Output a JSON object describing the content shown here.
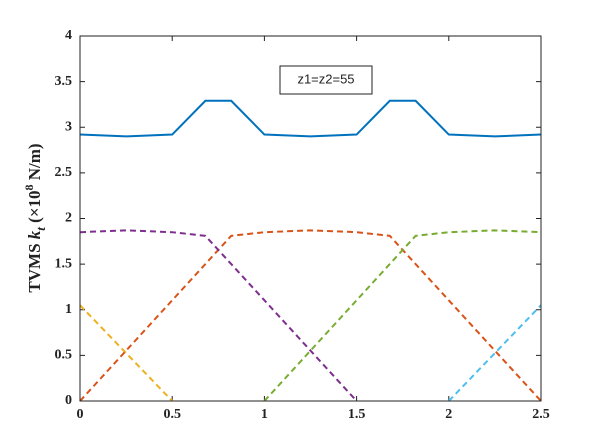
{
  "chart_data": {
    "type": "line",
    "annotation": "z1=z2=55",
    "ylabel_parts": [
      "TVMS ",
      "k",
      "t",
      " (×10",
      "8",
      " N/m)"
    ],
    "xlim": [
      0,
      2.5
    ],
    "xticks": [
      0,
      0.5,
      1,
      1.5,
      2,
      2.5
    ],
    "ylim": [
      0,
      4
    ],
    "yticks": [
      0,
      0.5,
      1,
      1.5,
      2,
      2.5,
      3,
      3.5,
      4
    ],
    "series": [
      {
        "color": "#0072bd",
        "style": "solid",
        "x": [
          0,
          0.25,
          0.5,
          0.68,
          0.82,
          1.0,
          1.25,
          1.5,
          1.68,
          1.82,
          2.0,
          2.25,
          2.5
        ],
        "values": [
          2.92,
          2.9,
          2.92,
          3.29,
          3.29,
          2.92,
          2.9,
          2.92,
          3.29,
          3.29,
          2.92,
          2.9,
          2.92
        ]
      },
      {
        "color": "#edb120",
        "style": "dashed",
        "x": [
          0,
          0.5
        ],
        "values": [
          1.05,
          0
        ]
      },
      {
        "color": "#d95319",
        "style": "dashed",
        "x": [
          0,
          0.82,
          1.0,
          1.25,
          1.5,
          1.68,
          2.5
        ],
        "values": [
          0,
          1.81,
          1.85,
          1.87,
          1.85,
          1.81,
          0
        ]
      },
      {
        "color": "#7e2f8e",
        "style": "dashed",
        "x": [
          0,
          0.25,
          0.5,
          0.68,
          1.5
        ],
        "values": [
          1.85,
          1.87,
          1.85,
          1.81,
          0
        ]
      },
      {
        "color": "#77ac30",
        "style": "dashed",
        "x": [
          1.0,
          1.82,
          2.0,
          2.25,
          2.5
        ],
        "values": [
          0,
          1.81,
          1.85,
          1.87,
          1.85
        ]
      },
      {
        "color": "#4dbeee",
        "style": "dashed",
        "x": [
          2.0,
          2.5
        ],
        "values": [
          0,
          1.05
        ]
      }
    ]
  }
}
